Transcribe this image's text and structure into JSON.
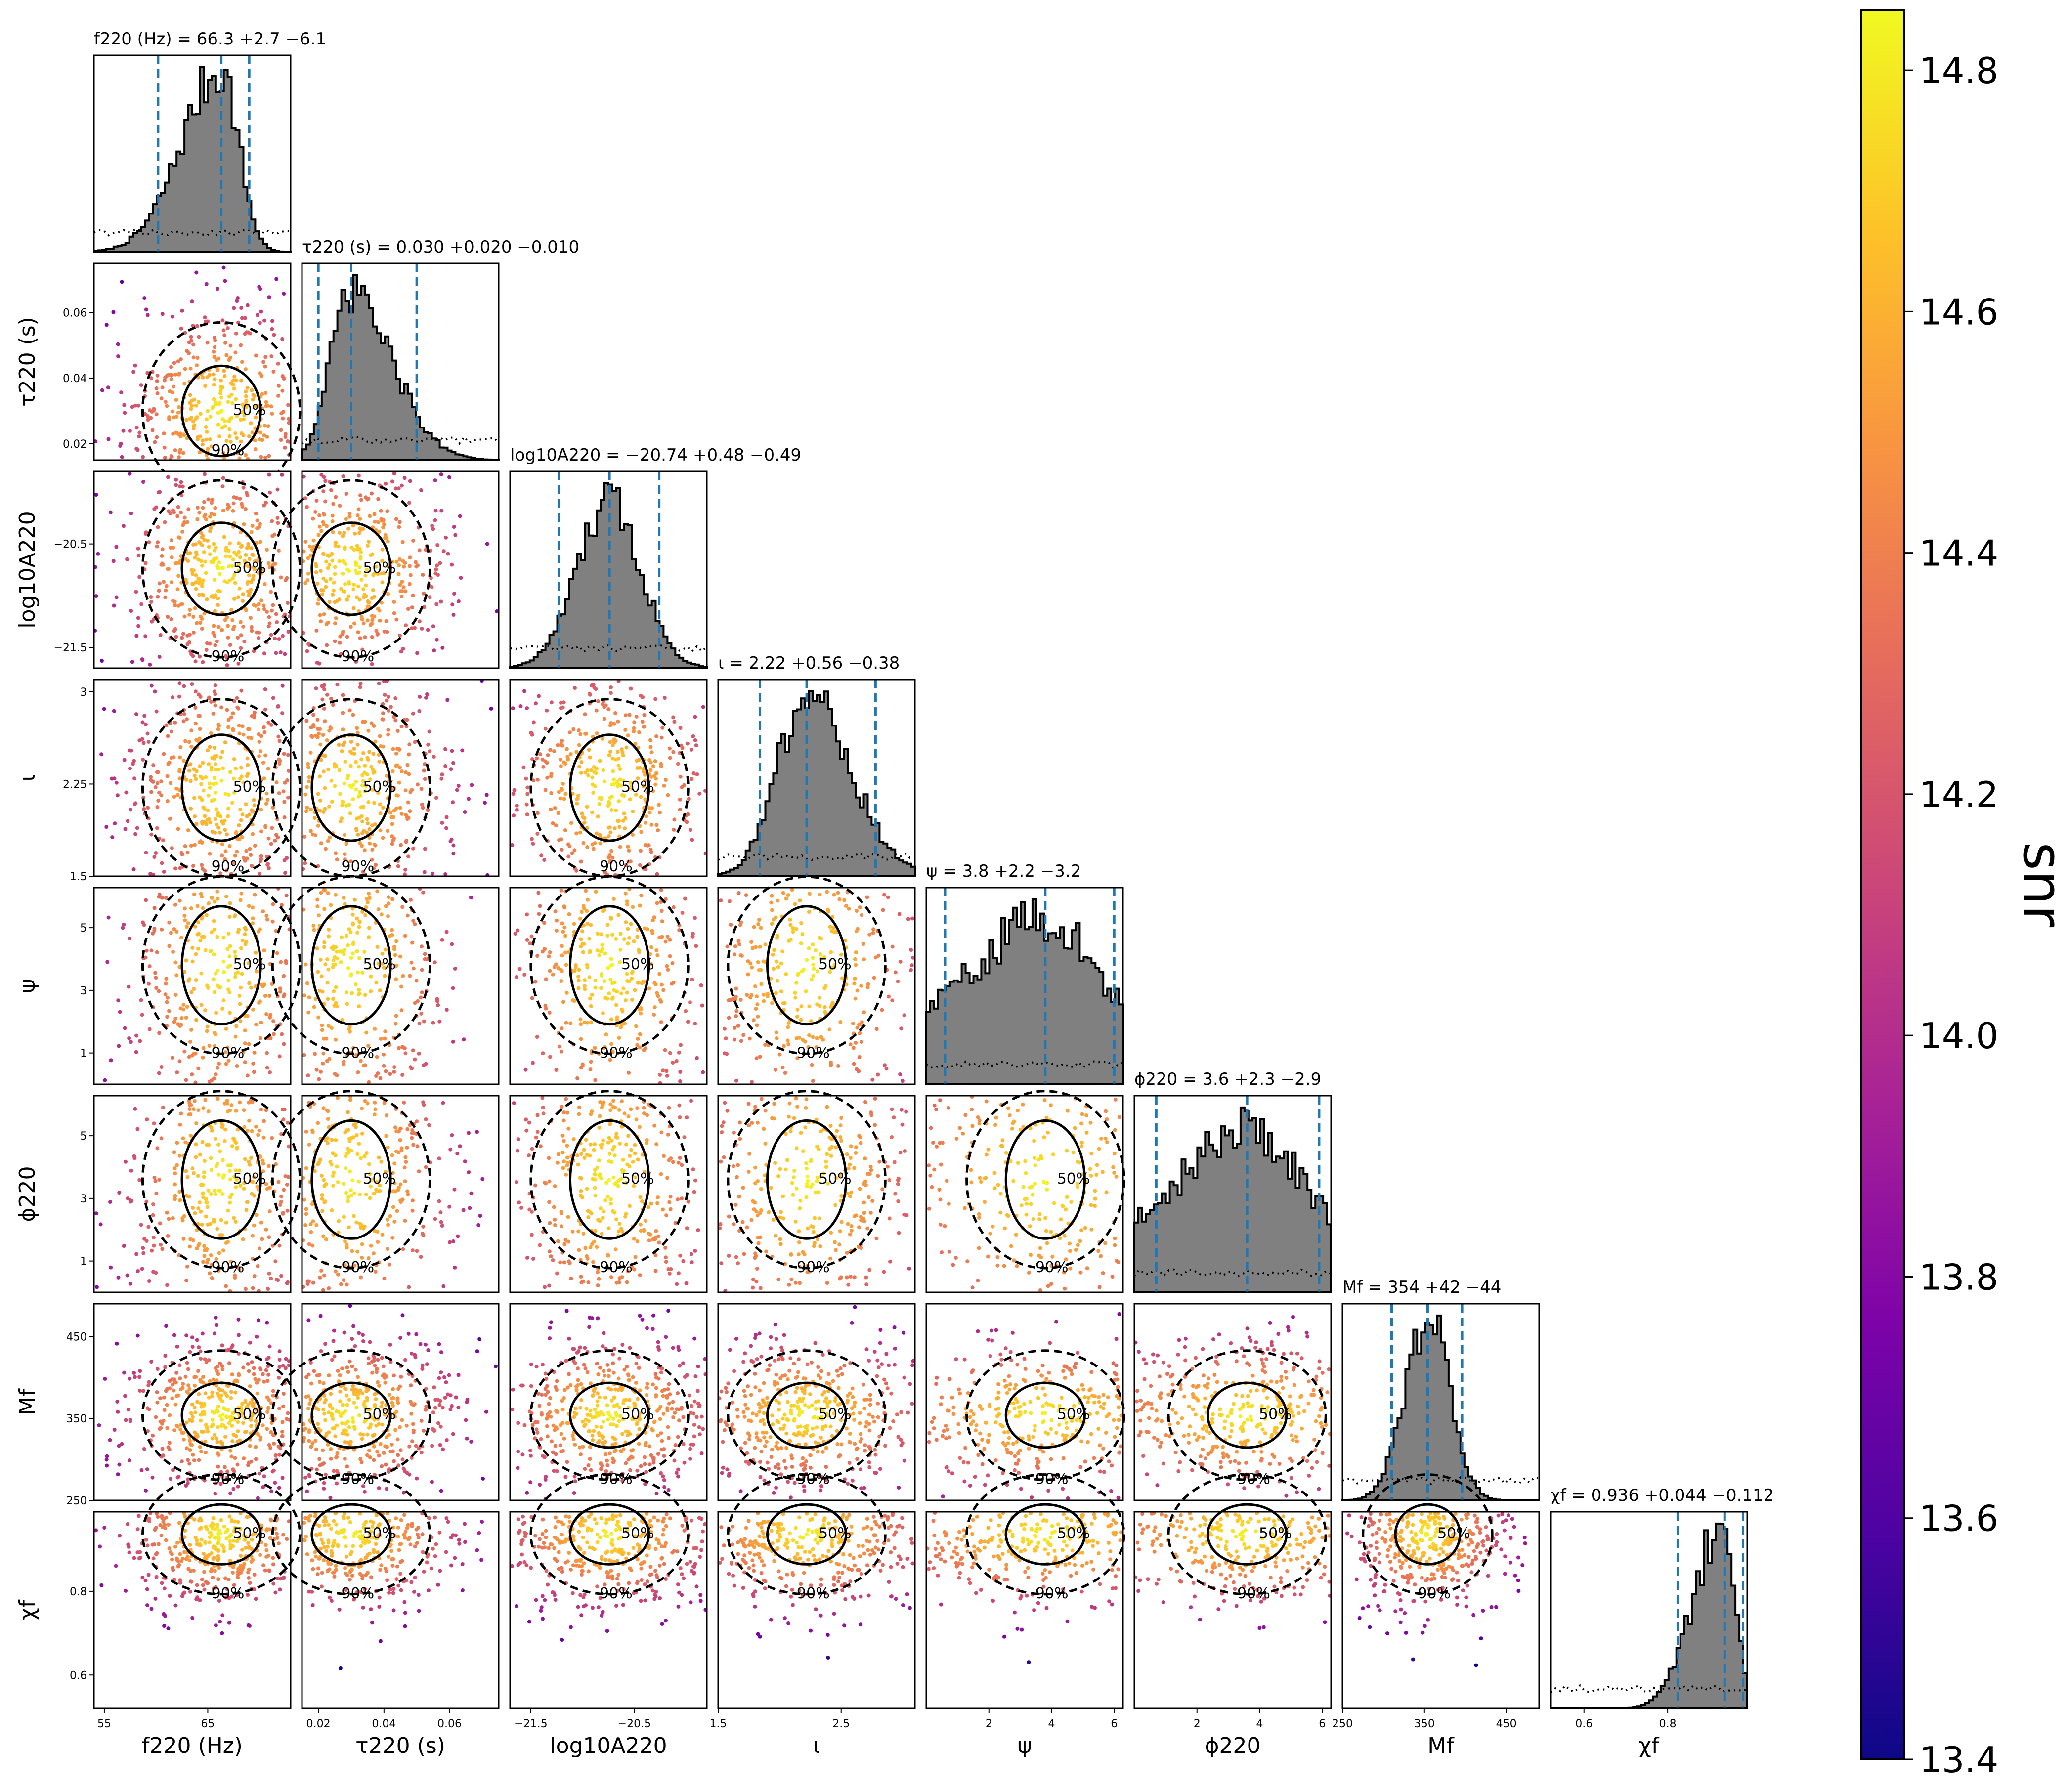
{
  "chart_data": {
    "type": "corner",
    "params": [
      {
        "key": "f220",
        "axis_label": "f220 (Hz)",
        "title": "f220 (Hz) = 66.3 +2.7 −6.1",
        "median": 66.3,
        "plus": 2.7,
        "minus": 6.1,
        "range": [
          54,
          73
        ],
        "ticks": [
          "55",
          "65"
        ],
        "ytick_values": [],
        "quantiles": [
          60.2,
          66.3,
          69.0
        ]
      },
      {
        "key": "tau220",
        "axis_label": "τ220 (s)",
        "title": "τ220 (s) = 0.030 +0.020 −0.010",
        "median": 0.03,
        "plus": 0.02,
        "minus": 0.01,
        "range": [
          0.015,
          0.075
        ],
        "ticks": [
          "0.02",
          "0.04",
          "0.06"
        ],
        "ytick_values": [
          0.02,
          0.04,
          0.06
        ],
        "quantiles": [
          0.02,
          0.03,
          0.05
        ]
      },
      {
        "key": "logA220",
        "axis_label": "log10A220",
        "title": "log10A220 = −20.74 +0.48 −0.49",
        "median": -20.74,
        "plus": 0.48,
        "minus": 0.49,
        "range": [
          -21.7,
          -19.8
        ],
        "ticks": [
          "−21.5",
          "−20.5"
        ],
        "ytick_values": [
          -21.5,
          -20.5
        ],
        "quantiles": [
          -21.23,
          -20.74,
          -20.26
        ]
      },
      {
        "key": "iota",
        "axis_label": "ι",
        "title": "ι = 2.22 +0.56 −0.38",
        "median": 2.22,
        "plus": 0.56,
        "minus": 0.38,
        "range": [
          1.5,
          3.1
        ],
        "ticks": [
          "1.5",
          "2.5"
        ],
        "ytick_values": [
          1.5,
          2.25,
          3.0
        ],
        "quantiles": [
          1.84,
          2.22,
          2.78
        ]
      },
      {
        "key": "psi",
        "axis_label": "ψ",
        "title": "ψ = 3.8 +2.2 −3.2",
        "median": 3.8,
        "plus": 2.2,
        "minus": 3.2,
        "range": [
          0,
          6.28
        ],
        "ticks": [
          "2",
          "4",
          "6"
        ],
        "ytick_values": [
          1,
          3,
          5
        ],
        "quantiles": [
          0.6,
          3.8,
          6.0
        ]
      },
      {
        "key": "phi220",
        "axis_label": "ϕ220",
        "title": "ϕ220 = 3.6 +2.3 −2.9",
        "median": 3.6,
        "plus": 2.3,
        "minus": 2.9,
        "range": [
          0,
          6.28
        ],
        "ticks": [
          "2",
          "4",
          "6"
        ],
        "ytick_values": [
          1,
          3,
          5
        ],
        "quantiles": [
          0.7,
          3.6,
          5.9
        ]
      },
      {
        "key": "Mf",
        "axis_label": "Mf",
        "title": "Mf = 354 +42 −44",
        "median": 354,
        "plus": 42,
        "minus": 44,
        "range": [
          250,
          490
        ],
        "ticks": [
          "250",
          "350",
          "450"
        ],
        "ytick_values": [
          250,
          350,
          450
        ],
        "quantiles": [
          310,
          354,
          396
        ]
      },
      {
        "key": "chif",
        "axis_label": "χf",
        "title": "χf = 0.936 +0.044 −0.112",
        "median": 0.936,
        "plus": 0.044,
        "minus": 0.112,
        "range": [
          0.52,
          0.99
        ],
        "ticks": [
          "0.6",
          "0.8"
        ],
        "ytick_values": [
          0.6,
          0.8
        ],
        "quantiles": [
          0.824,
          0.936,
          0.98
        ]
      }
    ],
    "contour_labels": [
      "50%",
      "90%"
    ],
    "colorbar": {
      "label": "snr",
      "range": [
        13.4,
        14.85
      ],
      "ticks": [
        "13.4",
        "13.6",
        "13.8",
        "14.0",
        "14.2",
        "14.4",
        "14.6",
        "14.8"
      ],
      "colormap": "plasma"
    },
    "colors": {
      "hist_fill": "#808080",
      "quantile_line": "#1f77b4",
      "contour": "#000000"
    }
  }
}
